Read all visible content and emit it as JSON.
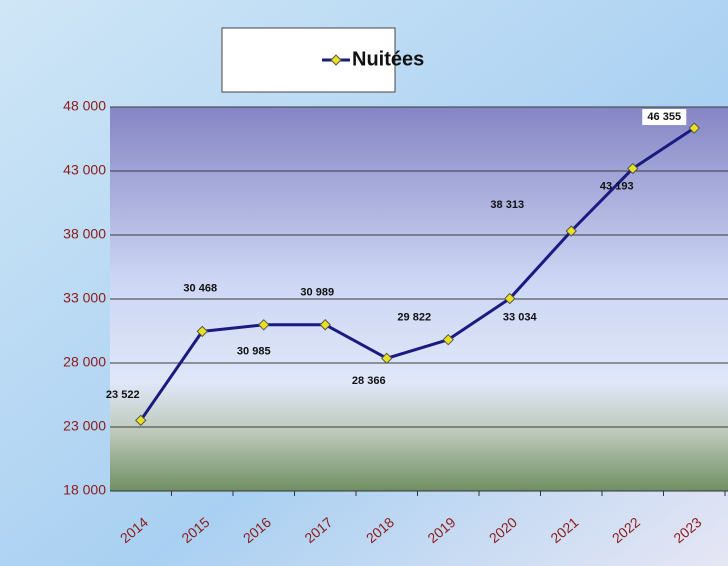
{
  "chart_data": {
    "type": "line",
    "categories": [
      "2014",
      "2015",
      "2016",
      "2017",
      "2018",
      "2019",
      "2020",
      "2021",
      "2022",
      "2023"
    ],
    "series": [
      {
        "name": "Nuitées",
        "color": "#1a1a80",
        "values": [
          23522,
          30468,
          30985,
          30989,
          28366,
          29822,
          33034,
          38313,
          43193,
          46355
        ],
        "value_labels": [
          "23 522",
          "30 468",
          "30 985",
          "30 989",
          "28 366",
          "29 822",
          "33 034",
          "38 313",
          "43 193",
          "46 355"
        ]
      }
    ],
    "ylim": [
      18000,
      48000
    ],
    "yticks": [
      {
        "value": 18000,
        "label": "18 000"
      },
      {
        "value": 23000,
        "label": "23 000"
      },
      {
        "value": 28000,
        "label": "28 000"
      },
      {
        "value": 33000,
        "label": "33 000"
      },
      {
        "value": 38000,
        "label": "38 000"
      },
      {
        "value": 43000,
        "label": "43 000"
      },
      {
        "value": 48000,
        "label": "48 000"
      }
    ],
    "grid": true,
    "marker_color": "#e8e020"
  }
}
